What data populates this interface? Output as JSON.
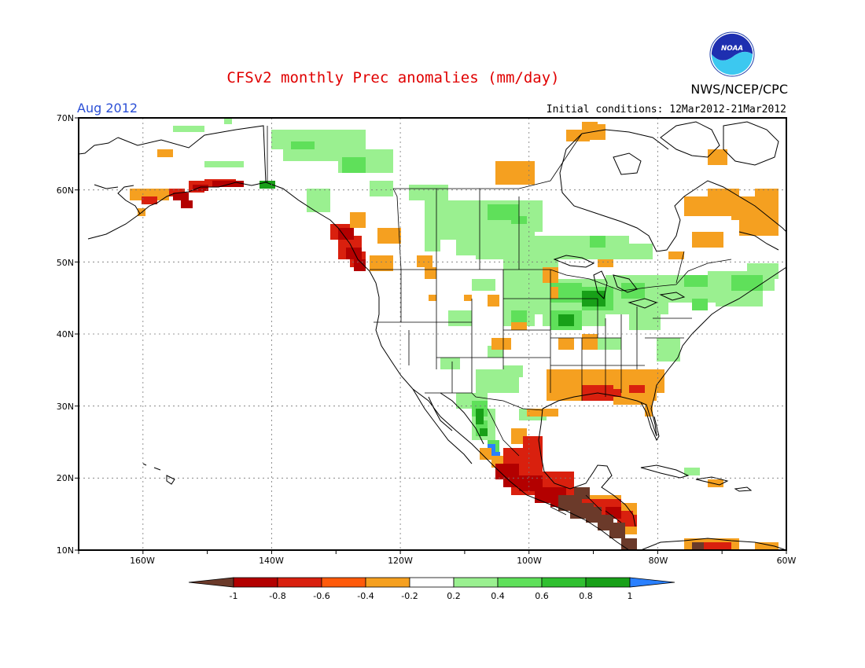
{
  "title": "CFSv2 monthly Prec anomalies (mm/day)",
  "month_label": "Aug 2012",
  "init_conditions": "Initial conditions: 12Mar2012-21Mar2012",
  "agency": "NWS/NCEP/CPC",
  "logo_text": "NOAA",
  "map": {
    "lon_labels": [
      "160W",
      "140W",
      "120W",
      "100W",
      "80W",
      "60W"
    ],
    "lat_labels": [
      "70N",
      "60N",
      "50N",
      "40N",
      "30N",
      "20N",
      "10N"
    ]
  },
  "legend": {
    "labels": [
      "-1",
      "-0.8",
      "-0.6",
      "-0.4",
      "-0.2",
      "0.2",
      "0.4",
      "0.6",
      "0.8",
      "1"
    ],
    "colors": [
      "#6b3a2a",
      "#b30000",
      "#d9200e",
      "#ff5a0a",
      "#f5a020",
      "#ffffff",
      "#9af090",
      "#5fe05a",
      "#30c030",
      "#18a018",
      "#2a80ff"
    ]
  },
  "colors": {
    "title": "#e00000",
    "month": "#2b4fd6",
    "dark_brown": "#6b3a2a",
    "dark_red": "#b30000",
    "red": "#d9200e",
    "orange": "#f5a020",
    "light_green": "#9af090",
    "green": "#5fe05a",
    "dark_green": "#18a018",
    "blue": "#2a80ff"
  }
}
